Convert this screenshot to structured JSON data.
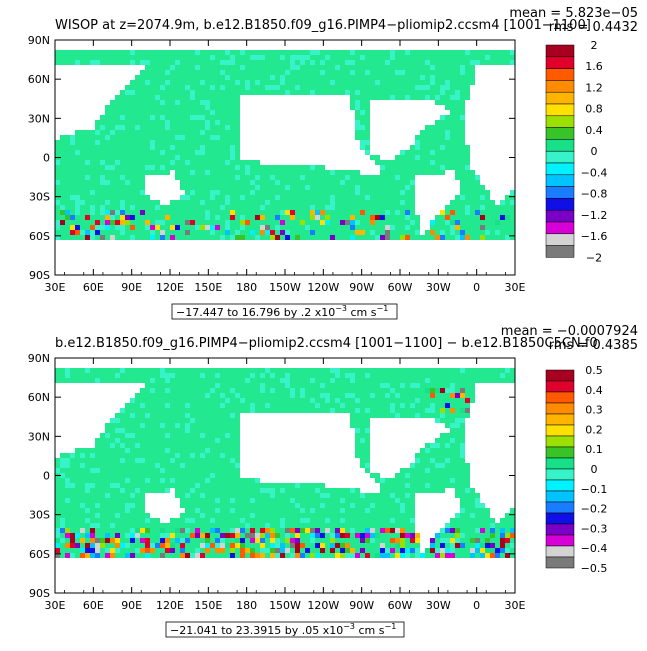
{
  "chart_data": [
    {
      "type": "heatmap",
      "title": "WISOP at z=2074.9m, b.e12.B1850.f09_g16.PIMP4−pliomip2.ccsm4 [1001−1100]",
      "stats": {
        "mean": "mean = 5.823e−05",
        "rms": "rms = 0.4432"
      },
      "y_ticks": [
        "90N",
        "60N",
        "30N",
        "0",
        "30S",
        "60S",
        "90S"
      ],
      "x_ticks": [
        "30E",
        "60E",
        "90E",
        "120E",
        "150E",
        "180",
        "150W",
        "120W",
        "90W",
        "60W",
        "30W",
        "0",
        "30E"
      ],
      "range_label": "−17.447 to 16.796 by .2 x10",
      "range_exp": "−3",
      "range_unit": " cm s",
      "range_unit_exp": "−1",
      "legend_labels": [
        "2",
        "1.6",
        "1.2",
        "0.8",
        "0.4",
        "0",
        "−0.4",
        "−0.8",
        "−1.2",
        "−1.6",
        "−2"
      ],
      "value_range": [
        -17.447,
        16.796
      ],
      "contour_interval": 0.2,
      "typical_field_value": 0
    },
    {
      "type": "heatmap",
      "title": "b.e12.B1850.f09_g16.PIMP4−pliomip2.ccsm4 [1001−1100] − b.e12.B1850C5CN.f0",
      "stats": {
        "mean": "mean = −0.0007924",
        "rms": "rms = 0.4385"
      },
      "y_ticks": [
        "90N",
        "60N",
        "30N",
        "0",
        "30S",
        "60S",
        "90S"
      ],
      "x_ticks": [
        "30E",
        "60E",
        "90E",
        "120E",
        "150E",
        "180",
        "150W",
        "120W",
        "90W",
        "60W",
        "30W",
        "0",
        "30E"
      ],
      "range_label": "−21.041 to 23.3915 by .05 x10",
      "range_exp": "−3",
      "range_unit": " cm s",
      "range_unit_exp": "−1",
      "legend_labels": [
        "0.5",
        "0.4",
        "0.3",
        "0.2",
        "0.1",
        "0",
        "−0.1",
        "−0.2",
        "−0.3",
        "−0.4",
        "−0.5"
      ],
      "value_range": [
        -21.041,
        23.3915
      ],
      "contour_interval": 0.05,
      "typical_field_value": 0
    }
  ],
  "colors": {
    "palette": [
      "#a8001f",
      "#e0002c",
      "#ff5a00",
      "#ff8c00",
      "#ffb400",
      "#ffe000",
      "#9be000",
      "#38c428",
      "#17e089",
      "#38f2c8",
      "#00f2ff",
      "#00c3ff",
      "#1a7dff",
      "#1010e6",
      "#7a00c8",
      "#d700d7",
      "#d3d3d3",
      "#7a7a7a"
    ],
    "ocean_main": "#22e88f",
    "land": "#ffffff"
  }
}
